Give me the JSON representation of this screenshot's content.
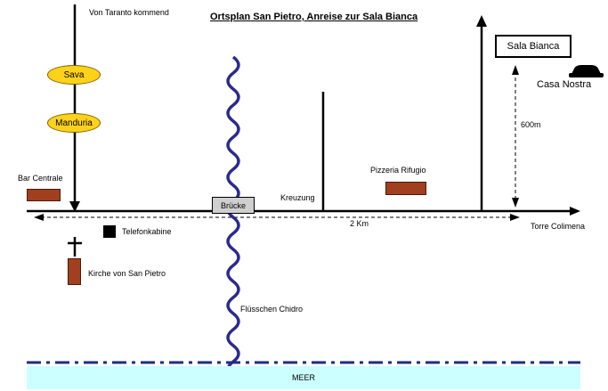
{
  "title": "Ortsplan San Pietro, Anreise zur Sala Bianca",
  "labels": {
    "from_taranto": "Von Taranto kommend",
    "sava": "Sava",
    "manduria": "Manduria",
    "bar_centrale": "Bar Centrale",
    "telefonkabine": "Telefonkabine",
    "kirche": "Kirche von San Pietro",
    "bruecke": "Brücke",
    "fluesschen": "Flüsschen Chidro",
    "kreuzung": "Kreuzung",
    "pizzeria": "Pizzeria Rifugio",
    "sala_bianca": "Sala Bianca",
    "casa_nostra": "Casa Nostra",
    "distance_600": "600m",
    "distance_2km": "2 Km",
    "torre_colimena": "Torre Colimena",
    "meer": "MEER"
  },
  "colors": {
    "road": "#000000",
    "river": "#2b2a8f",
    "town_oval": "#ffd21a",
    "building": "#a0401f",
    "bridge": "#cfcfcf",
    "sea": "#ccffff",
    "coastline": "#1a2f80"
  },
  "icons": [
    "cross-icon",
    "car-icon",
    "phone-booth-icon"
  ]
}
